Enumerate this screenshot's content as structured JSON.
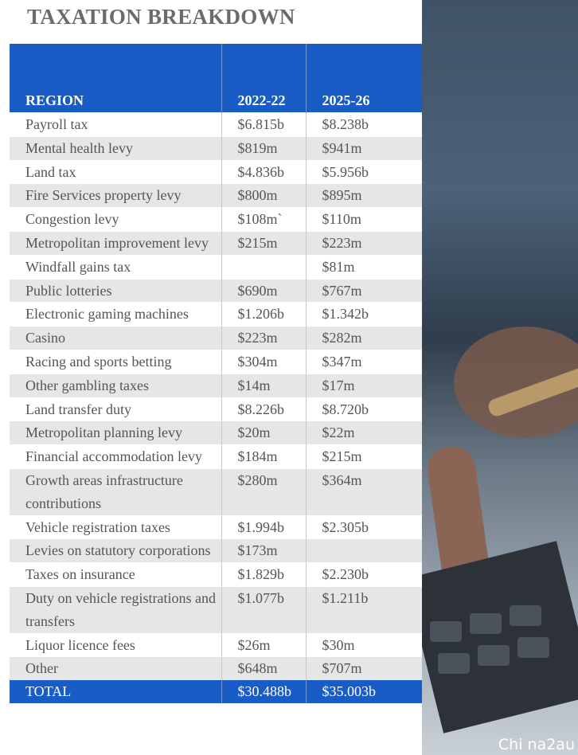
{
  "title": "TAXATION BREAKDOWN",
  "table": {
    "header": [
      "REGION",
      "2022-22",
      "2025-26"
    ],
    "rows": [
      [
        "Payroll tax",
        "$6.815b",
        "$8.238b"
      ],
      [
        "Mental health levy",
        "$819m",
        "$941m"
      ],
      [
        "Land tax",
        "$4.836b",
        "$5.956b"
      ],
      [
        "Fire Services property levy",
        "$800m",
        "$895m"
      ],
      [
        "Congestion levy",
        "$108m`",
        "$110m"
      ],
      [
        "Metropolitan improvement levy",
        "$215m",
        "$223m"
      ],
      [
        "Windfall gains tax",
        null,
        "$81m"
      ],
      [
        "Public lotteries",
        "$690m",
        "$767m"
      ],
      [
        "Electronic gaming machines",
        "$1.206b",
        "$1.342b"
      ],
      [
        "Casino",
        "$223m",
        "$282m"
      ],
      [
        "Racing and sports betting",
        "$304m",
        "$347m"
      ],
      [
        "Other gambling taxes",
        "$14m",
        "$17m"
      ],
      [
        "Land transfer duty",
        "$8.226b",
        "$8.720b"
      ],
      [
        "Metropolitan planning levy",
        "$20m",
        "$22m"
      ],
      [
        "Financial accommodation levy",
        "$184m",
        "$215m"
      ],
      [
        "Growth areas infrastructure contributions",
        "$280m",
        "$364m"
      ],
      [
        "Vehicle registration taxes",
        "$1.994b",
        "$2.305b"
      ],
      [
        "Levies on statutory corporations",
        "$173m",
        null
      ],
      [
        "Taxes on insurance",
        "$1.829b",
        "$2.230b"
      ],
      [
        "Duty on vehicle registrations and transfers",
        "$1.077b",
        "$1.211b"
      ],
      [
        "Liquor licence fees",
        "$26m",
        "$30m"
      ],
      [
        "Other",
        "$648m",
        "$707m"
      ]
    ],
    "total": [
      "TOTAL",
      "$30.488b",
      "$35.003b"
    ]
  },
  "watermark": "Chi na2au"
}
